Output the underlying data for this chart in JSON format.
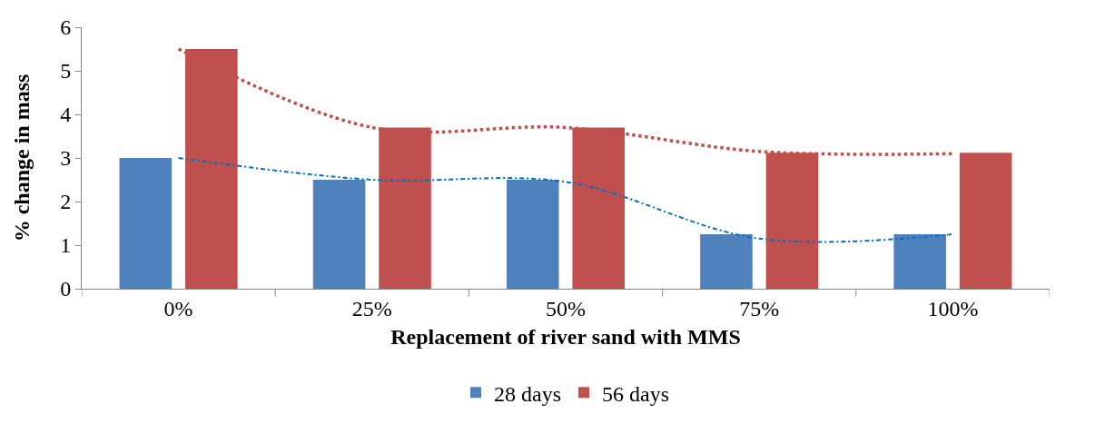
{
  "chart_data": {
    "type": "bar",
    "xlabel": "Replacement of river sand with MMS",
    "ylabel": "% change in mass",
    "categories": [
      "0%",
      "25%",
      "50%",
      "75%",
      "100%"
    ],
    "series": [
      {
        "name": "28 days",
        "color": "#4f81bd",
        "values": [
          3,
          2.5,
          2.5,
          1.25,
          1.25
        ]
      },
      {
        "name": "56 days",
        "color": "#c0504d",
        "values": [
          5.5,
          3.7,
          3.7,
          3.12,
          3.12
        ]
      },
      {
        "type": "line",
        "color": "#0070c0",
        "line_style": "dashdot",
        "values": [
          3.0,
          2.5,
          2.45,
          1.15,
          1.25
        ]
      },
      {
        "type": "line",
        "color": "#c0504d",
        "line_style": "dotted",
        "values": [
          5.5,
          3.7,
          3.7,
          3.15,
          3.1
        ]
      }
    ],
    "ylim": [
      0,
      6
    ],
    "yticks": [
      0,
      1,
      2,
      3,
      4,
      5,
      6
    ],
    "grid": false,
    "legend": "bottom"
  }
}
